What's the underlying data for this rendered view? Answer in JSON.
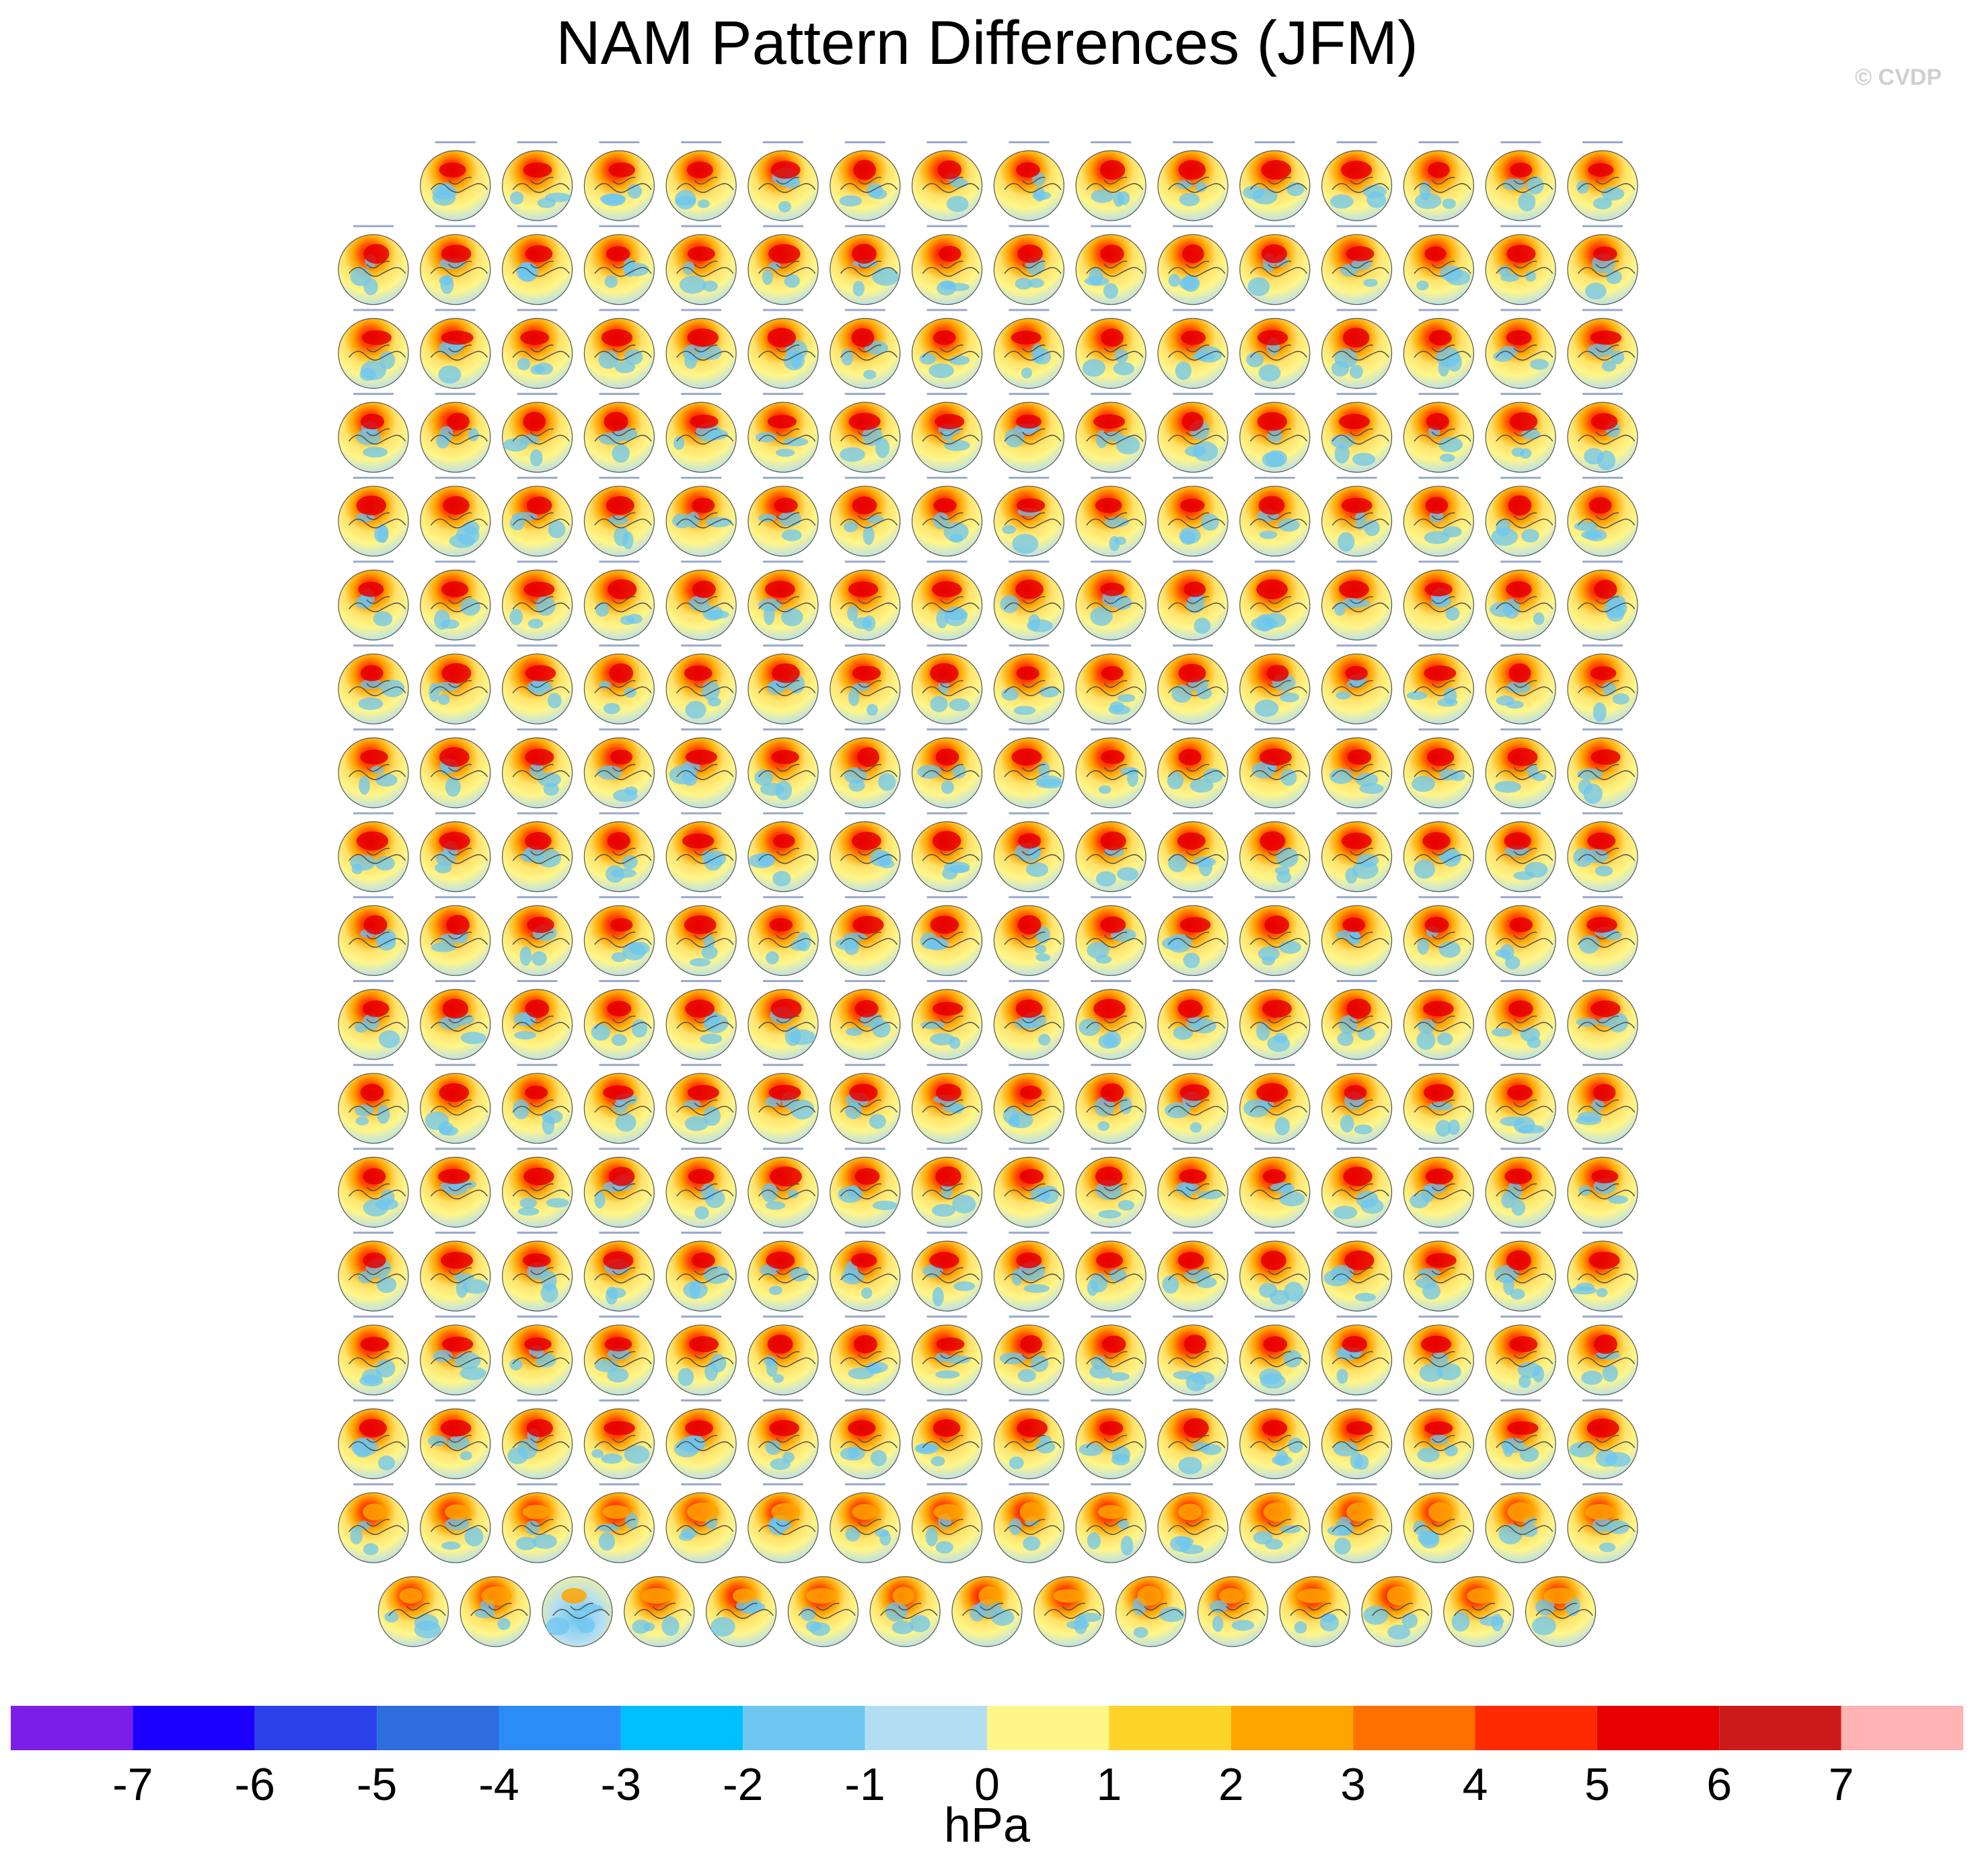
{
  "title": "NAM Pattern Differences (JFM)",
  "watermark": "© CVDP",
  "colorbar": {
    "unit_label": "hPa",
    "tick_labels": [
      "-7",
      "-6",
      "-5",
      "-4",
      "-3",
      "-2",
      "-1",
      "0",
      "1",
      "2",
      "3",
      "4",
      "5",
      "6",
      "7"
    ],
    "colors": [
      "#7b1fe8",
      "#1c00ff",
      "#2a41e8",
      "#2d6de0",
      "#2c8cf7",
      "#00bfff",
      "#6cc6f0",
      "#b3def2",
      "#fff68a",
      "#ffd42a",
      "#ffa500",
      "#ff7000",
      "#ff2a00",
      "#e60000",
      "#cc1a1a",
      "#ffb3b3"
    ]
  },
  "chart_data": {
    "type": "heatmap",
    "description_free": true,
    "title": "NAM Pattern Differences (JFM)",
    "units": "hPa",
    "levels": [
      -7,
      -6,
      -5,
      -4,
      -3,
      -2,
      -1,
      0,
      1,
      2,
      3,
      4,
      5,
      6,
      7
    ],
    "panel_rows": [
      15,
      16,
      16,
      16,
      16,
      16,
      16,
      16,
      16,
      16,
      16,
      16,
      16,
      16,
      16,
      16,
      16,
      15
    ],
    "panel_count": 286
  }
}
